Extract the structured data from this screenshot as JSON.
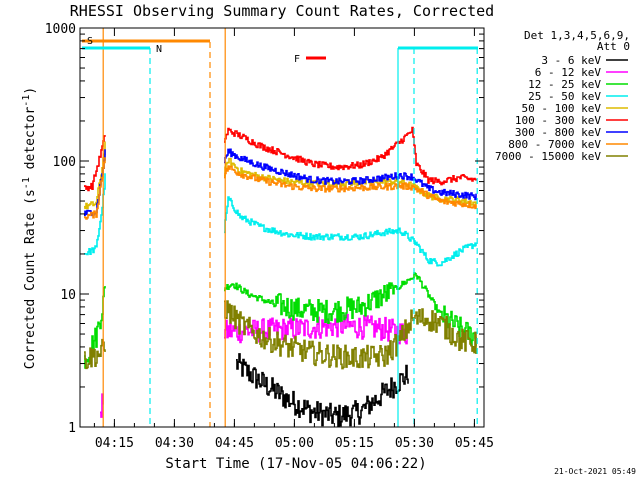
{
  "chart_data": {
    "type": "line",
    "title": "RHESSI Observing Summary Count Rates, Corrected",
    "xlabel": "Start Time (17-Nov-05 04:06:22)",
    "ylabel_main": "Corrected Count Rate (s",
    "ylabel_sup1": "-1",
    "ylabel_mid": " detector",
    "ylabel_sup2": "-1",
    "ylabel_end": ")",
    "yscale": "log",
    "ylim": [
      1,
      1000
    ],
    "xlim_minutes": [
      0,
      101
    ],
    "x_ticks": [
      {
        "label": "04:15",
        "min": 8.6
      },
      {
        "label": "04:30",
        "min": 23.6
      },
      {
        "label": "04:45",
        "min": 38.6
      },
      {
        "label": "05:00",
        "min": 53.6
      },
      {
        "label": "05:15",
        "min": 68.6
      },
      {
        "label": "05:30",
        "min": 83.6
      },
      {
        "label": "05:45",
        "min": 98.6
      }
    ],
    "y_ticks": [
      {
        "label": "1",
        "value": 1
      },
      {
        "label": "10",
        "value": 10
      },
      {
        "label": "100",
        "value": 100
      },
      {
        "label": "1000",
        "value": 1000
      }
    ],
    "legend": {
      "header1": "Det 1,3,4,5,6,9,",
      "header2": "Att 0",
      "placement": "right"
    },
    "series": [
      {
        "name": "3 - 6 keV",
        "color": "#000000",
        "segments": [
          {
            "x": [
              39,
              45,
              52,
              58,
              64,
              70,
              76,
              82
            ],
            "y": [
              3.0,
              2.2,
              1.6,
              1.3,
              1.2,
              1.3,
              1.8,
              2.5
            ]
          }
        ]
      },
      {
        "name": "6 - 12 keV",
        "color": "#ff00ff",
        "segments": [
          {
            "x": [
              5.0,
              5.8
            ],
            "y": [
              1.1,
              1.7
            ]
          },
          {
            "x": [
              36,
              45,
              55,
              65,
              75,
              82
            ],
            "y": [
              5.2,
              5.3,
              5.5,
              5.8,
              5.5,
              5.0
            ]
          }
        ]
      },
      {
        "name": "12 - 25 keV",
        "color": "#00dd00",
        "segments": [
          {
            "x": [
              1,
              4,
              5.5,
              6.3
            ],
            "y": [
              3.2,
              4.8,
              8.0,
              11.0
            ]
          },
          {
            "x": [
              36,
              38,
              42,
              48,
              55,
              62,
              70,
              78,
              84,
              90,
              96,
              99
            ],
            "y": [
              11.0,
              12.0,
              10.0,
              8.5,
              7.6,
              7.4,
              8.0,
              10.5,
              14.0,
              7.0,
              5.2,
              4.8
            ]
          }
        ]
      },
      {
        "name": "25 - 50 keV",
        "color": "#00eeee",
        "segments": [
          {
            "x": [
              1,
              4,
              5.5,
              6.3
            ],
            "y": [
              20,
              22,
              45,
              80
            ]
          },
          {
            "x": [
              36,
              37,
              40,
              45,
              52,
              58,
              64,
              70,
              76,
              80,
              84,
              87,
              90,
              95,
              99
            ],
            "y": [
              30,
              52,
              38,
              32,
              28,
              27,
              27,
              27,
              29,
              30,
              24,
              18,
              17,
              21,
              24
            ]
          }
        ]
      },
      {
        "name": "50 - 100 keV",
        "color": "#ddbb00",
        "segments": [
          {
            "x": [
              1,
              4,
              5.5,
              6.3
            ],
            "y": [
              45,
              48,
              90,
              140
            ]
          },
          {
            "x": [
              36,
              37,
              40,
              45,
              52,
              58,
              64,
              70,
              76,
              80,
              83,
              87,
              90,
              95,
              99
            ],
            "y": [
              80,
              102,
              84,
              76,
              70,
              68,
              68,
              69,
              70,
              70,
              65,
              55,
              52,
              51,
              48
            ]
          }
        ]
      },
      {
        "name": "100 - 300 keV",
        "color": "#ff0000",
        "segments": [
          {
            "x": [
              1,
              3,
              5,
              6.3
            ],
            "y": [
              62,
              65,
              110,
              160
            ]
          },
          {
            "x": [
              36,
              37,
              40,
              45,
              52,
              58,
              64,
              70,
              75,
              80,
              83,
              84,
              87,
              90,
              95,
              99
            ],
            "y": [
              140,
              170,
              155,
              130,
              110,
              95,
              90,
              93,
              105,
              140,
              170,
              95,
              72,
              70,
              75,
              72
            ]
          }
        ]
      },
      {
        "name": "300 - 800 keV",
        "color": "#0000ff",
        "segments": [
          {
            "x": [
              1,
              4,
              5.5,
              6.3
            ],
            "y": [
              40,
              42,
              80,
              120
            ]
          },
          {
            "x": [
              36,
              37,
              40,
              45,
              52,
              58,
              64,
              70,
              76,
              80,
              83,
              87,
              90,
              95,
              99
            ],
            "y": [
              100,
              118,
              105,
              92,
              80,
              72,
              70,
              71,
              75,
              78,
              76,
              62,
              58,
              56,
              54
            ]
          }
        ]
      },
      {
        "name": "800 - 7000 keV",
        "color": "#ff8800",
        "segments": [
          {
            "x": [
              1,
              4,
              5.5,
              6.3
            ],
            "y": [
              38,
              40,
              78,
              115
            ]
          },
          {
            "x": [
              36,
              37,
              40,
              45,
              52,
              58,
              64,
              70,
              76,
              80,
              83,
              87,
              90,
              95,
              99
            ],
            "y": [
              78,
              90,
              80,
              72,
              65,
              62,
              62,
              63,
              64,
              65,
              64,
              55,
              50,
              48,
              46
            ]
          }
        ]
      },
      {
        "name": "7000 - 15000 keV",
        "color": "#808000",
        "segments": [
          {
            "x": [
              1,
              3,
              5,
              6.3
            ],
            "y": [
              3.2,
              3.4,
              3.6,
              3.9
            ]
          },
          {
            "x": [
              36,
              40,
              45,
              52,
              58,
              64,
              70,
              76,
              80,
              83,
              87,
              90,
              95,
              99
            ],
            "y": [
              8.0,
              6.0,
              4.8,
              4.0,
              3.6,
              3.4,
              3.3,
              3.4,
              4.5,
              6.5,
              6.5,
              6.0,
              4.5,
              4.2
            ]
          }
        ]
      }
    ],
    "annotations": {
      "s_label": "S",
      "s_range_min": [
        0.5,
        32.5
      ],
      "n_label": "N",
      "n_ranges_min": [
        [
          0.5,
          17.5
        ],
        [
          79.5,
          99.5
        ]
      ],
      "f_label": "F",
      "f_range_min": [
        56.5,
        61.5
      ],
      "orange_vlines_min": [
        5.8,
        36.3
      ],
      "orange_dashed_vlines_min": [
        32.5
      ],
      "cyan_dashed_vlines_min": [
        17.5,
        83.5,
        99.3
      ],
      "cyan_solid_vlines_min": [
        79.5
      ]
    },
    "grid": false
  },
  "footer_date": "21-Oct-2021 05:49"
}
